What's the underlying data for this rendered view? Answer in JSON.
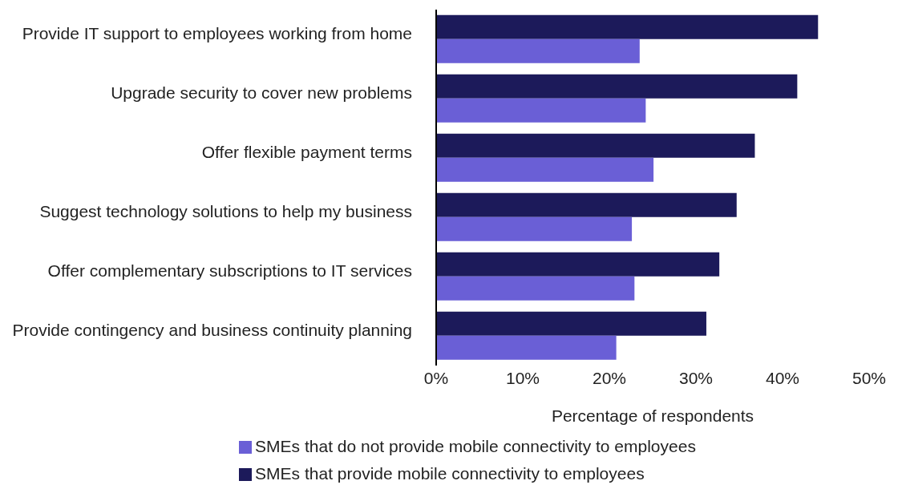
{
  "chart_data": {
    "type": "bar",
    "orientation": "horizontal",
    "xlabel": "Percentage of respondents",
    "categories": [
      "Provide IT support to employees working from home",
      "Upgrade security to cover new problems",
      "Offer flexible payment terms",
      "Suggest technology solutions to help my business",
      "Offer complementary subscriptions to IT services",
      "Provide contingency and business continuity planning"
    ],
    "series": [
      {
        "name": "SMEs that provide mobile connectivity to employees",
        "color": "#1c1a5a",
        "values": [
          44.1,
          41.7,
          36.8,
          34.7,
          32.7,
          31.2
        ]
      },
      {
        "name": "SMEs that do not provide mobile connectivity to employees",
        "color": "#6a5fd6",
        "values": [
          23.5,
          24.2,
          25.1,
          22.6,
          22.9,
          20.8
        ]
      }
    ],
    "xlim": [
      0,
      50
    ],
    "xticks": [
      {
        "value": 0,
        "label": "0%"
      },
      {
        "value": 10,
        "label": "10%"
      },
      {
        "value": 20,
        "label": "20%"
      },
      {
        "value": 30,
        "label": "30%"
      },
      {
        "value": 40,
        "label": "40%"
      },
      {
        "value": 50,
        "label": "50%"
      }
    ],
    "grid": false,
    "legend": "bottom"
  }
}
